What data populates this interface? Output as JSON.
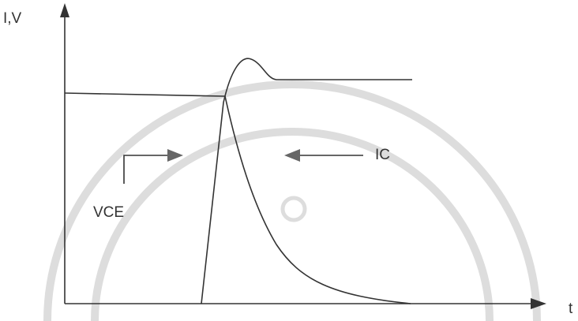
{
  "axes": {
    "y_label": "I,V",
    "x_label": "t"
  },
  "labels": {
    "vce": "VCE",
    "ic": "IC"
  }
}
